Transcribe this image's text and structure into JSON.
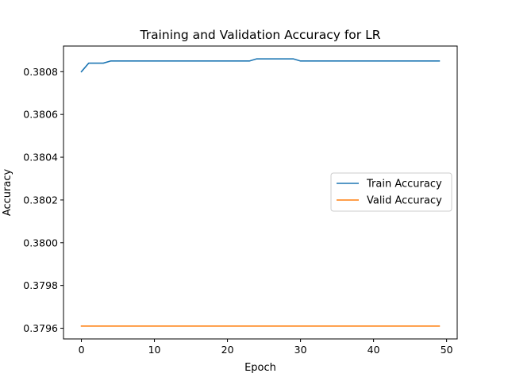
{
  "chart_data": {
    "type": "line",
    "title": "Training and Validation Accuracy for LR",
    "xlabel": "Epoch",
    "ylabel": "Accuracy",
    "xlim": [
      -2.45,
      51.45
    ],
    "ylim": [
      0.37955,
      0.38092
    ],
    "xticks": [
      0,
      10,
      20,
      30,
      40,
      50
    ],
    "yticks": [
      0.3796,
      0.3798,
      0.38,
      0.3802,
      0.3804,
      0.3806,
      0.3808
    ],
    "ytick_labels": [
      "0.3796",
      "0.3798",
      "0.3800",
      "0.3802",
      "0.3804",
      "0.3806",
      "0.3808"
    ],
    "xtick_labels": [
      "0",
      "10",
      "20",
      "30",
      "40",
      "50"
    ],
    "grid": false,
    "legend_position": "center-right",
    "x": [
      0,
      1,
      2,
      3,
      4,
      5,
      6,
      7,
      8,
      9,
      10,
      11,
      12,
      13,
      14,
      15,
      16,
      17,
      18,
      19,
      20,
      21,
      22,
      23,
      24,
      25,
      26,
      27,
      28,
      29,
      30,
      31,
      32,
      33,
      34,
      35,
      36,
      37,
      38,
      39,
      40,
      41,
      42,
      43,
      44,
      45,
      46,
      47,
      48,
      49
    ],
    "series": [
      {
        "name": "Train Accuracy",
        "color": "#1f77b4",
        "values": [
          0.3808,
          0.38084,
          0.38084,
          0.38084,
          0.38085,
          0.38085,
          0.38085,
          0.38085,
          0.38085,
          0.38085,
          0.38085,
          0.38085,
          0.38085,
          0.38085,
          0.38085,
          0.38085,
          0.38085,
          0.38085,
          0.38085,
          0.38085,
          0.38085,
          0.38085,
          0.38085,
          0.38085,
          0.38086,
          0.38086,
          0.38086,
          0.38086,
          0.38086,
          0.38086,
          0.38085,
          0.38085,
          0.38085,
          0.38085,
          0.38085,
          0.38085,
          0.38085,
          0.38085,
          0.38085,
          0.38085,
          0.38085,
          0.38085,
          0.38085,
          0.38085,
          0.38085,
          0.38085,
          0.38085,
          0.38085,
          0.38085,
          0.38085
        ]
      },
      {
        "name": "Valid Accuracy",
        "color": "#ff7f0e",
        "values": [
          0.37961,
          0.37961,
          0.37961,
          0.37961,
          0.37961,
          0.37961,
          0.37961,
          0.37961,
          0.37961,
          0.37961,
          0.37961,
          0.37961,
          0.37961,
          0.37961,
          0.37961,
          0.37961,
          0.37961,
          0.37961,
          0.37961,
          0.37961,
          0.37961,
          0.37961,
          0.37961,
          0.37961,
          0.37961,
          0.37961,
          0.37961,
          0.37961,
          0.37961,
          0.37961,
          0.37961,
          0.37961,
          0.37961,
          0.37961,
          0.37961,
          0.37961,
          0.37961,
          0.37961,
          0.37961,
          0.37961,
          0.37961,
          0.37961,
          0.37961,
          0.37961,
          0.37961,
          0.37961,
          0.37961,
          0.37961,
          0.37961,
          0.37961
        ]
      }
    ]
  }
}
